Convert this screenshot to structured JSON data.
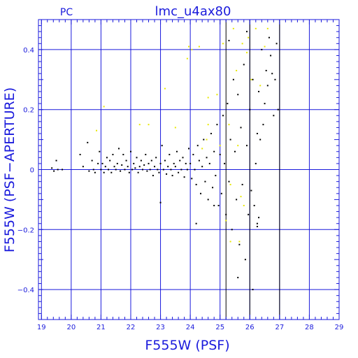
{
  "chart_data": {
    "type": "scatter",
    "title": "lmc_u4ax80",
    "corner_label": "PC",
    "xlabel": "F555W (PSF)",
    "ylabel": "F555W (PSF−APERTURE)",
    "xlim": [
      18.9,
      29
    ],
    "ylim": [
      -0.5,
      0.5
    ],
    "xticks": [
      19,
      20,
      21,
      22,
      23,
      24,
      25,
      26,
      27,
      28,
      29
    ],
    "xtick_labels": [
      "19",
      "20",
      "21",
      "22",
      "23",
      "24",
      "25",
      "26",
      "27",
      "28",
      "29"
    ],
    "yticks": [
      -0.4,
      -0.2,
      0,
      0.2,
      0.4
    ],
    "ytick_labels": [
      "−0.4",
      "−0.2",
      "0",
      "0.2",
      "0.4"
    ],
    "grid": true,
    "colors": {
      "frame": "#1a1adc",
      "black_points": "#000000",
      "yellow_points": "#e8e800",
      "vline": "#000000"
    },
    "vertical_lines": [
      25.2,
      26.0,
      27.0
    ],
    "series": [
      {
        "color": "#000000",
        "points": [
          [
            19.35,
            0.005
          ],
          [
            19.42,
            -0.005
          ],
          [
            19.5,
            0.03
          ],
          [
            19.55,
            0.0
          ],
          [
            19.7,
            0.0
          ],
          [
            20.3,
            0.05
          ],
          [
            20.4,
            0.01
          ],
          [
            20.55,
            0.09
          ],
          [
            20.6,
            -0.005
          ],
          [
            20.7,
            0.03
          ],
          [
            20.75,
            0.0
          ],
          [
            20.8,
            -0.01
          ],
          [
            20.9,
            0.02
          ],
          [
            20.95,
            0.06
          ],
          [
            21.0,
            0.0
          ],
          [
            21.05,
            0.02
          ],
          [
            21.1,
            -0.01
          ],
          [
            21.15,
            0.01
          ],
          [
            21.2,
            0.04
          ],
          [
            21.25,
            0.0
          ],
          [
            21.3,
            0.03
          ],
          [
            21.35,
            -0.01
          ],
          [
            21.4,
            0.05
          ],
          [
            21.45,
            0.01
          ],
          [
            21.5,
            0.0
          ],
          [
            21.55,
            0.02
          ],
          [
            21.6,
            0.07
          ],
          [
            21.65,
            -0.005
          ],
          [
            21.7,
            0.015
          ],
          [
            21.75,
            0.05
          ],
          [
            21.8,
            0.0
          ],
          [
            21.85,
            0.03
          ],
          [
            21.9,
            0.01
          ],
          [
            21.95,
            -0.01
          ],
          [
            22.0,
            0.06
          ],
          [
            22.05,
            0.0
          ],
          [
            22.1,
            0.02
          ],
          [
            22.15,
            0.005
          ],
          [
            22.2,
            0.04
          ],
          [
            22.25,
            -0.01
          ],
          [
            22.3,
            0.01
          ],
          [
            22.35,
            0.03
          ],
          [
            22.4,
            0.0
          ],
          [
            22.45,
            0.015
          ],
          [
            22.5,
            0.05
          ],
          [
            22.55,
            -0.005
          ],
          [
            22.6,
            0.02
          ],
          [
            22.65,
            0.0
          ],
          [
            22.7,
            0.03
          ],
          [
            22.75,
            -0.02
          ],
          [
            22.8,
            0.01
          ],
          [
            22.85,
            0.04
          ],
          [
            22.9,
            0.0
          ],
          [
            22.95,
            -0.01
          ],
          [
            23.0,
            0.02
          ],
          [
            23.05,
            0.08
          ],
          [
            23.1,
            0.0
          ],
          [
            23.15,
            0.03
          ],
          [
            23.2,
            -0.015
          ],
          [
            23.25,
            0.01
          ],
          [
            23.3,
            0.05
          ],
          [
            23.35,
            0.0
          ],
          [
            23.4,
            -0.02
          ],
          [
            23.45,
            0.02
          ],
          [
            23.5,
            0.01
          ],
          [
            23.55,
            0.06
          ],
          [
            23.6,
            -0.01
          ],
          [
            23.65,
            0.03
          ],
          [
            23.7,
            0.0
          ],
          [
            23.75,
            0.04
          ],
          [
            23.8,
            -0.025
          ],
          [
            23.85,
            0.02
          ],
          [
            23.9,
            0.0
          ],
          [
            23.95,
            0.07
          ],
          [
            24.0,
            0.02
          ],
          [
            24.05,
            -0.03
          ],
          [
            24.1,
            0.05
          ],
          [
            24.15,
            0.0
          ],
          [
            24.2,
            -0.05
          ],
          [
            24.25,
            0.08
          ],
          [
            24.3,
            0.03
          ],
          [
            24.35,
            -0.08
          ],
          [
            24.4,
            0.01
          ],
          [
            24.45,
            0.1
          ],
          [
            24.5,
            -0.04
          ],
          [
            24.55,
            0.04
          ],
          [
            24.6,
            -0.1
          ],
          [
            24.65,
            0.02
          ],
          [
            24.7,
            0.12
          ],
          [
            24.75,
            -0.06
          ],
          [
            24.8,
            0.06
          ],
          [
            24.85,
            -0.02
          ],
          [
            24.9,
            0.15
          ],
          [
            24.95,
            -0.12
          ],
          [
            25.0,
            0.05
          ],
          [
            25.05,
            -0.08
          ],
          [
            25.1,
            0.18
          ],
          [
            25.15,
            0.02
          ],
          [
            25.2,
            -0.15
          ],
          [
            25.25,
            0.22
          ],
          [
            25.3,
            -0.04
          ],
          [
            25.35,
            0.1
          ],
          [
            25.4,
            -0.2
          ],
          [
            25.45,
            0.3
          ],
          [
            25.5,
            0.06
          ],
          [
            25.55,
            -0.1
          ],
          [
            25.6,
            0.25
          ],
          [
            25.65,
            -0.25
          ],
          [
            25.7,
            0.14
          ],
          [
            25.75,
            -0.05
          ],
          [
            25.8,
            0.35
          ],
          [
            25.85,
            -0.3
          ],
          [
            25.9,
            0.08
          ],
          [
            25.95,
            -0.15
          ],
          [
            26.0,
            0.2
          ],
          [
            26.05,
            -0.07
          ],
          [
            26.1,
            0.3
          ],
          [
            26.15,
            -0.12
          ],
          [
            26.2,
            0.02
          ],
          [
            26.25,
            -0.18
          ],
          [
            26.3,
            0.26
          ],
          [
            26.35,
            0.1
          ],
          [
            26.4,
            0.4
          ],
          [
            26.45,
            0.15
          ],
          [
            26.5,
            0.22
          ],
          [
            26.55,
            0.33
          ],
          [
            26.6,
            0.28
          ],
          [
            26.65,
            0.44
          ],
          [
            26.7,
            0.38
          ],
          [
            26.75,
            0.32
          ],
          [
            26.8,
            0.18
          ],
          [
            26.85,
            0.3
          ],
          [
            26.9,
            0.42
          ],
          [
            26.95,
            0.2
          ],
          [
            24.2,
            -0.18
          ],
          [
            24.8,
            -0.12
          ],
          [
            23.0,
            -0.11
          ],
          [
            25.3,
            0.43
          ],
          [
            25.6,
            -0.36
          ],
          [
            26.1,
            -0.4
          ],
          [
            25.9,
            0.46
          ],
          [
            26.25,
            0.12
          ],
          [
            26.3,
            -0.16
          ],
          [
            26.25,
            -0.19
          ]
        ]
      },
      {
        "color": "#e8e800",
        "points": [
          [
            20.85,
            0.13
          ],
          [
            21.1,
            0.21
          ],
          [
            22.3,
            0.15
          ],
          [
            22.6,
            0.15
          ],
          [
            23.15,
            0.27
          ],
          [
            23.5,
            0.14
          ],
          [
            23.9,
            0.37
          ],
          [
            23.95,
            0.41
          ],
          [
            24.05,
            0.4
          ],
          [
            24.3,
            0.41
          ],
          [
            24.55,
            0.1
          ],
          [
            24.6,
            0.15
          ],
          [
            24.9,
            0.25
          ],
          [
            25.0,
            0.08
          ],
          [
            25.1,
            0.42
          ],
          [
            25.3,
            0.15
          ],
          [
            25.45,
            0.47
          ],
          [
            25.6,
            0.08
          ],
          [
            25.7,
            -0.09
          ],
          [
            25.8,
            -0.12
          ],
          [
            25.9,
            0.39
          ],
          [
            25.95,
            0.44
          ],
          [
            26.05,
            0.3
          ],
          [
            26.2,
            0.47
          ],
          [
            26.35,
            0.28
          ],
          [
            26.5,
            0.41
          ],
          [
            26.6,
            0.47
          ],
          [
            24.6,
            0.24
          ],
          [
            25.35,
            -0.24
          ],
          [
            25.2,
            -0.17
          ],
          [
            25.55,
            0.33
          ],
          [
            25.75,
            0.42
          ],
          [
            25.65,
            -0.24
          ],
          [
            25.35,
            -0.05
          ],
          [
            24.4,
            0.07
          ]
        ]
      }
    ]
  }
}
